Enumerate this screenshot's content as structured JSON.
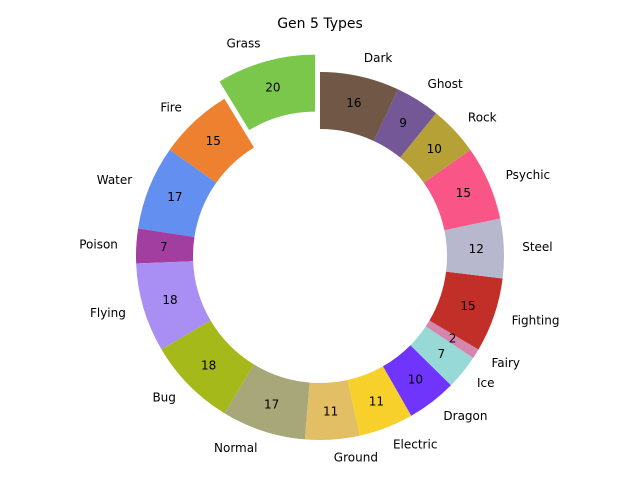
{
  "chart_data": {
    "type": "pie",
    "style": "donut",
    "title": "Gen 5 Types",
    "start_angle_deg": 90,
    "direction": "counterclockwise",
    "exploded": "Grass",
    "categories": [
      "Grass",
      "Fire",
      "Water",
      "Poison",
      "Flying",
      "Bug",
      "Normal",
      "Ground",
      "Electric",
      "Dragon",
      "Ice",
      "Fairy",
      "Fighting",
      "Steel",
      "Psychic",
      "Rock",
      "Ghost",
      "Dark"
    ],
    "values": [
      20,
      15,
      17,
      7,
      18,
      18,
      17,
      11,
      11,
      10,
      7,
      2,
      15,
      12,
      15,
      10,
      9,
      16
    ],
    "colors": [
      "#7AC74C",
      "#EE8130",
      "#6390F0",
      "#A33EA1",
      "#A98FF3",
      "#A6B91A",
      "#A8A77A",
      "#E2BF65",
      "#F7D02C",
      "#6F35FC",
      "#96D9D6",
      "#D685AD",
      "#C22E28",
      "#B7B7CE",
      "#F95587",
      "#B6A136",
      "#735797",
      "#705746"
    ]
  }
}
